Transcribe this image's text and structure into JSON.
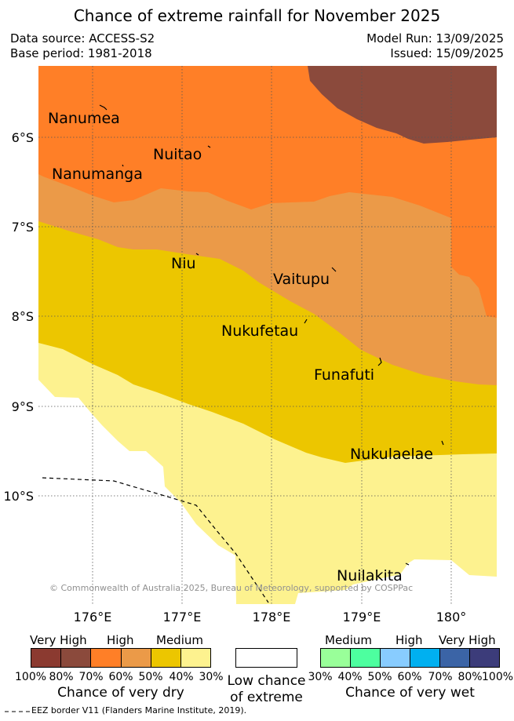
{
  "title": "Chance of extreme rainfall for November 2025",
  "header": {
    "data_source": "Data source: ACCESS-S2",
    "base_period": "Base period: 1981-2018",
    "model_run": "Model Run: 13/09/2025",
    "issued": "Issued: 15/09/2025"
  },
  "map": {
    "lat_labels": [
      "6°S",
      "7°S",
      "8°S",
      "9°S",
      "10°S"
    ],
    "lon_labels": [
      "176°E",
      "177°E",
      "178°E",
      "179°E",
      "180°"
    ],
    "places": [
      "Nanumea",
      "Nuitao",
      "Nanumanga",
      "Niu",
      "Vaitupu",
      "Nukufetau",
      "Funafuti",
      "Nukulaelae",
      "Nuilakita"
    ],
    "copyright": "© Commonwealth of Australia 2025, Bureau of Meteorology, supported by COSPPac",
    "colors": {
      "very_high_dry": "#8b4a3c",
      "high_dry": "#ff7f27",
      "high_dry_light": "#eb9a48",
      "medium_dry": "#ecc600",
      "medium_dry_light": "#fdf28f",
      "low": "#ffffff"
    }
  },
  "legend": {
    "dry": {
      "headers": [
        "Very High",
        "High",
        "Medium"
      ],
      "ticks": [
        "100%",
        "80%",
        "70%",
        "60%",
        "50%",
        "40%",
        "30%"
      ],
      "colors": [
        "#8b3a30",
        "#8b4a3c",
        "#ff7f27",
        "#eb9a48",
        "#ecc600",
        "#fdf28f"
      ],
      "caption": "Chance of very dry"
    },
    "low": {
      "caption_line1": "Low chance",
      "caption_line2": "of extreme"
    },
    "wet": {
      "headers": [
        "Medium",
        "High",
        "Very High"
      ],
      "ticks": [
        "30%",
        "40%",
        "50%",
        "60%",
        "70%",
        "80%",
        "100%"
      ],
      "colors": [
        "#99ff99",
        "#4dff9f",
        "#88ccff",
        "#00b0f0",
        "#3b64a6",
        "#3c3c7a"
      ],
      "caption": "Chance of very wet"
    },
    "eez_note": "EEZ border V11 (Flanders Marine Institute, 2019)."
  }
}
